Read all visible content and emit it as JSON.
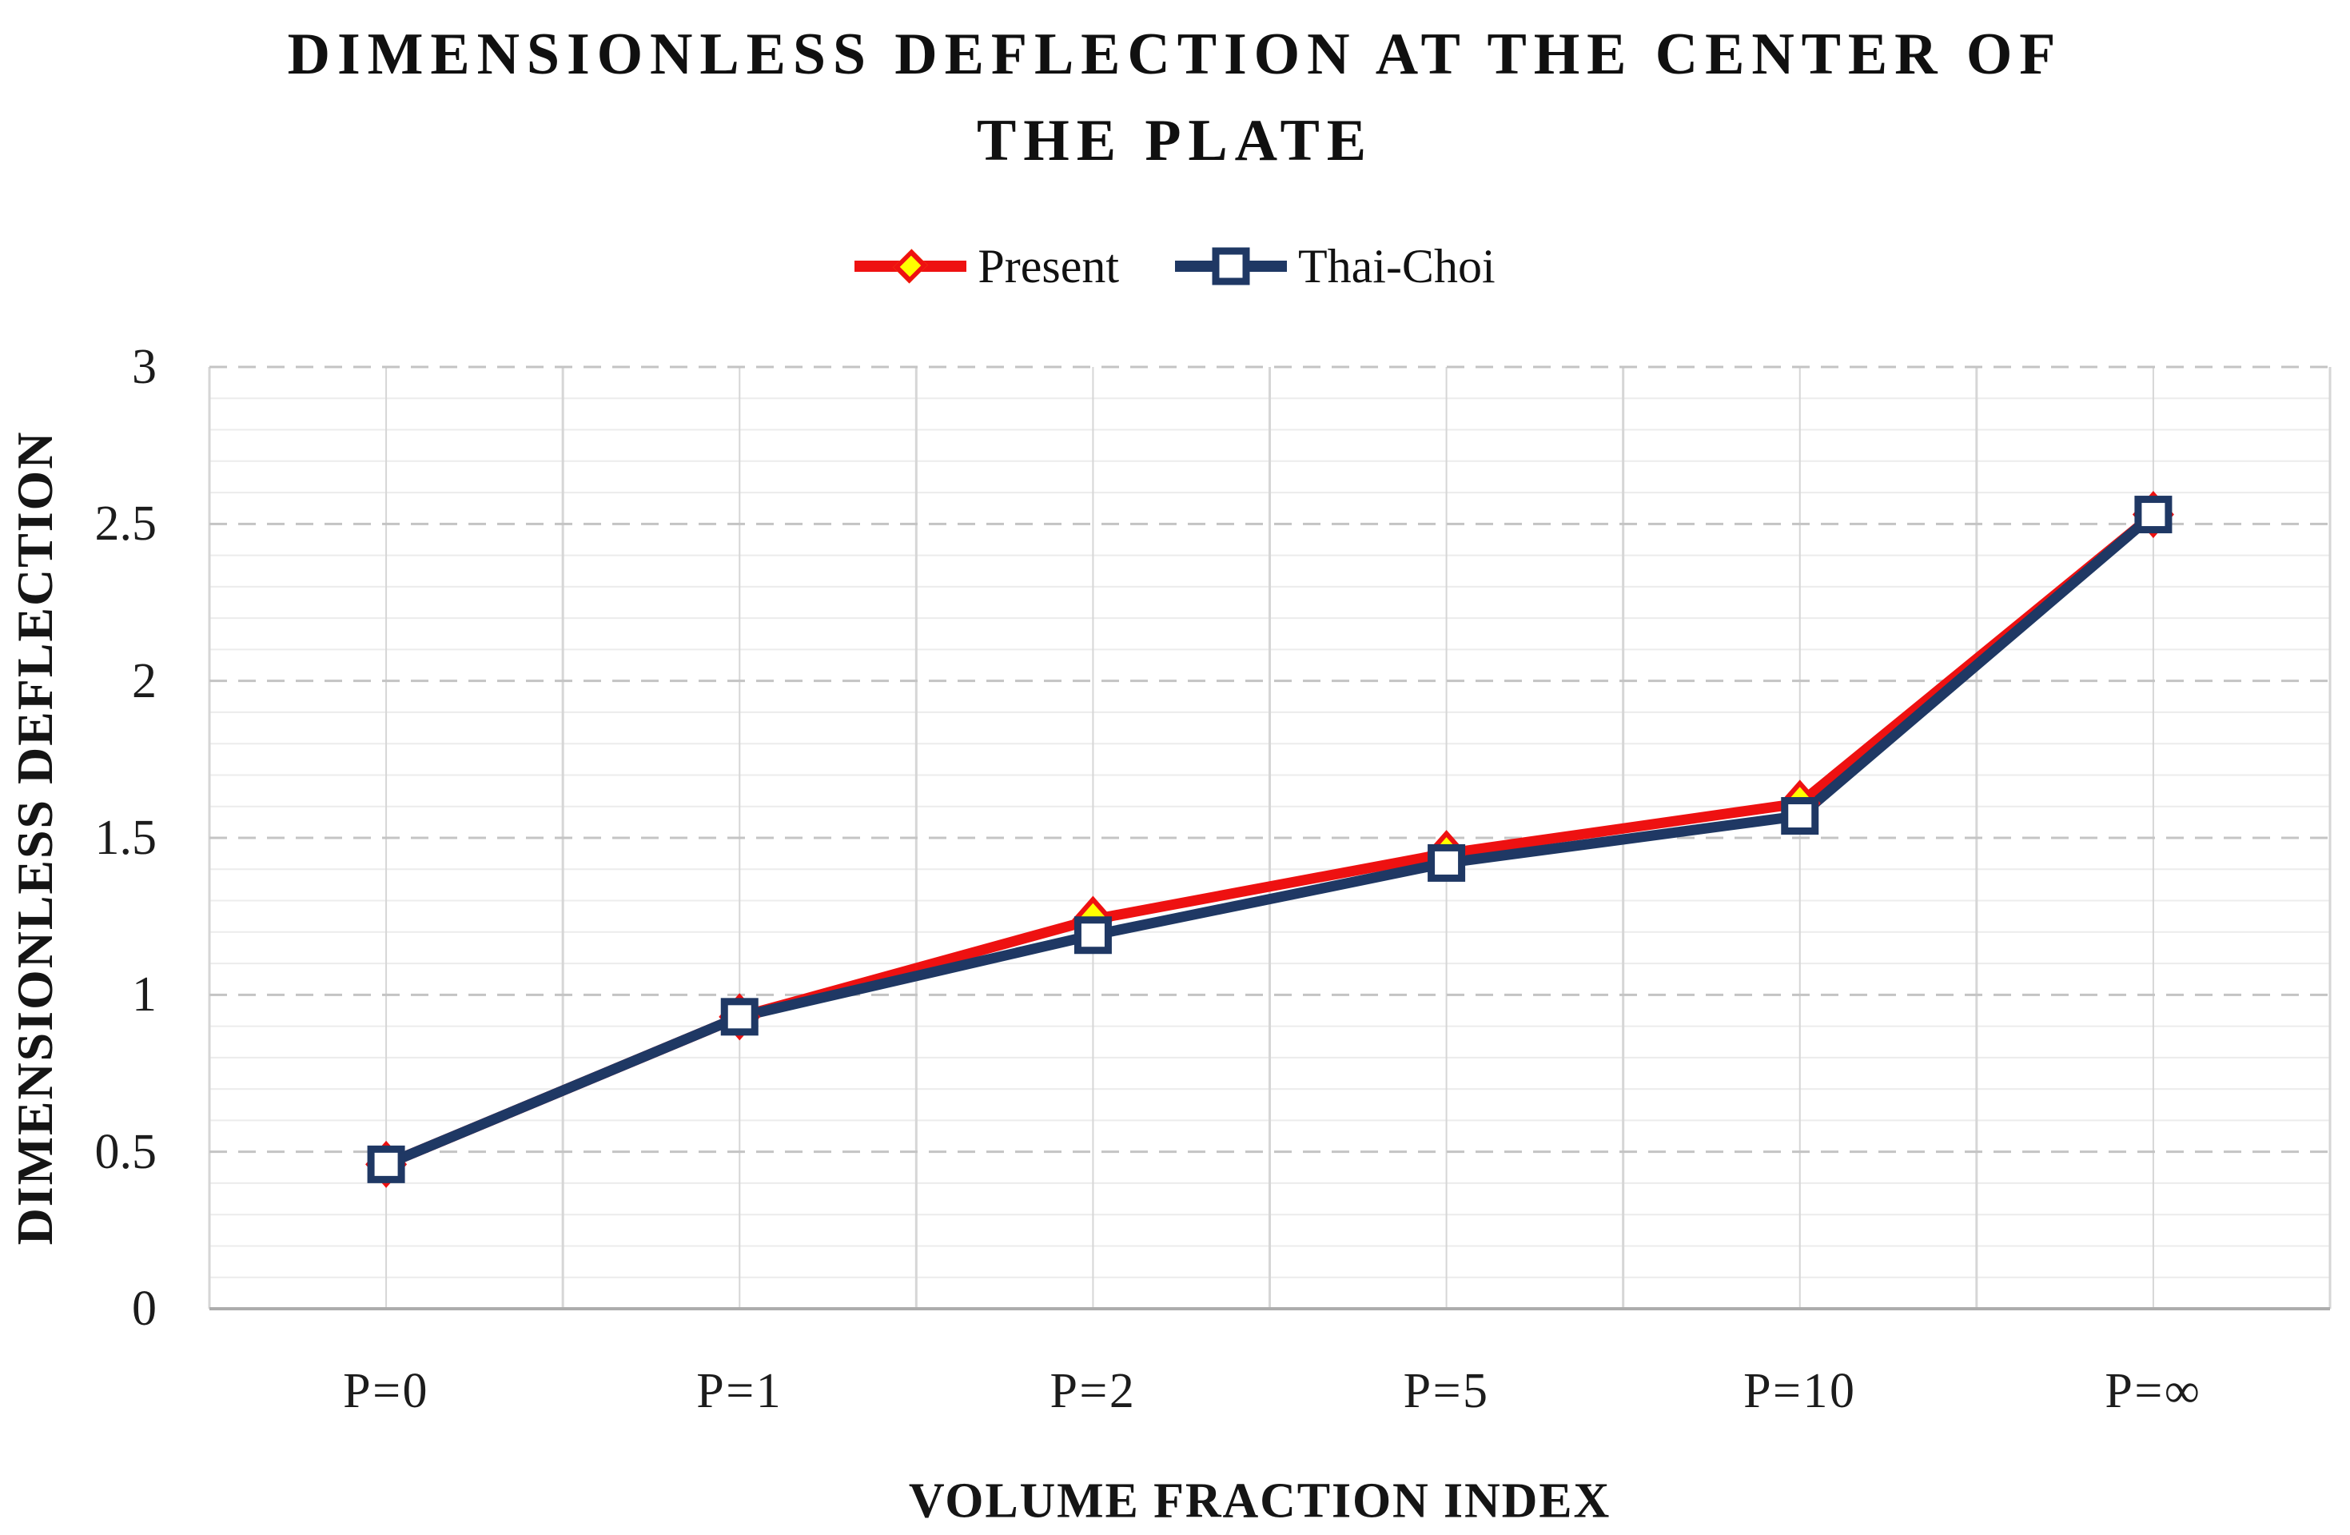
{
  "title_lines": [
    "DIMENSIONLESS DEFLECTION AT THE CENTER OF",
    "THE PLATE"
  ],
  "chart_data": {
    "type": "line",
    "title": "DIMENSIONLESS DEFLECTION AT THE CENTER OF THE PLATE",
    "xlabel": "VOLUME FRACTION INDEX",
    "ylabel": "DIMENSIONLESS DEFLECTION",
    "categories": [
      "P=0",
      "P=1",
      "P=2",
      "P=5",
      "P=10",
      "P=∞"
    ],
    "series": [
      {
        "name": "Present",
        "line_color": "#ee1111",
        "marker": "diamond",
        "marker_fill": "#ffff00",
        "marker_stroke": "#ee1111",
        "values": [
          0.46,
          0.93,
          1.24,
          1.45,
          1.61,
          2.53
        ]
      },
      {
        "name": "Thai-Choi",
        "line_color": "#1f3864",
        "marker": "square",
        "marker_fill": "#ffffff",
        "marker_stroke": "#1f3864",
        "values": [
          0.46,
          0.93,
          1.19,
          1.42,
          1.57,
          2.53
        ]
      }
    ],
    "ylim": [
      0,
      3
    ],
    "y_major_interval": 0.5,
    "y_minor_interval": 0.1,
    "y_tick_values": [
      0,
      0.5,
      1,
      1.5,
      2,
      2.5,
      3
    ],
    "y_tick_labels": [
      "0",
      "0.5",
      "1",
      "1.5",
      "2",
      "2.5",
      "3"
    ],
    "grid": {
      "major_h_color": "#c4c4c4",
      "major_h_style": "dashed",
      "minor_h_color": "#ececec",
      "minor_h_style": "solid",
      "vertical_color": "#d6d6d6",
      "axis_line_color": "#adadad"
    },
    "legend_position": "top"
  }
}
